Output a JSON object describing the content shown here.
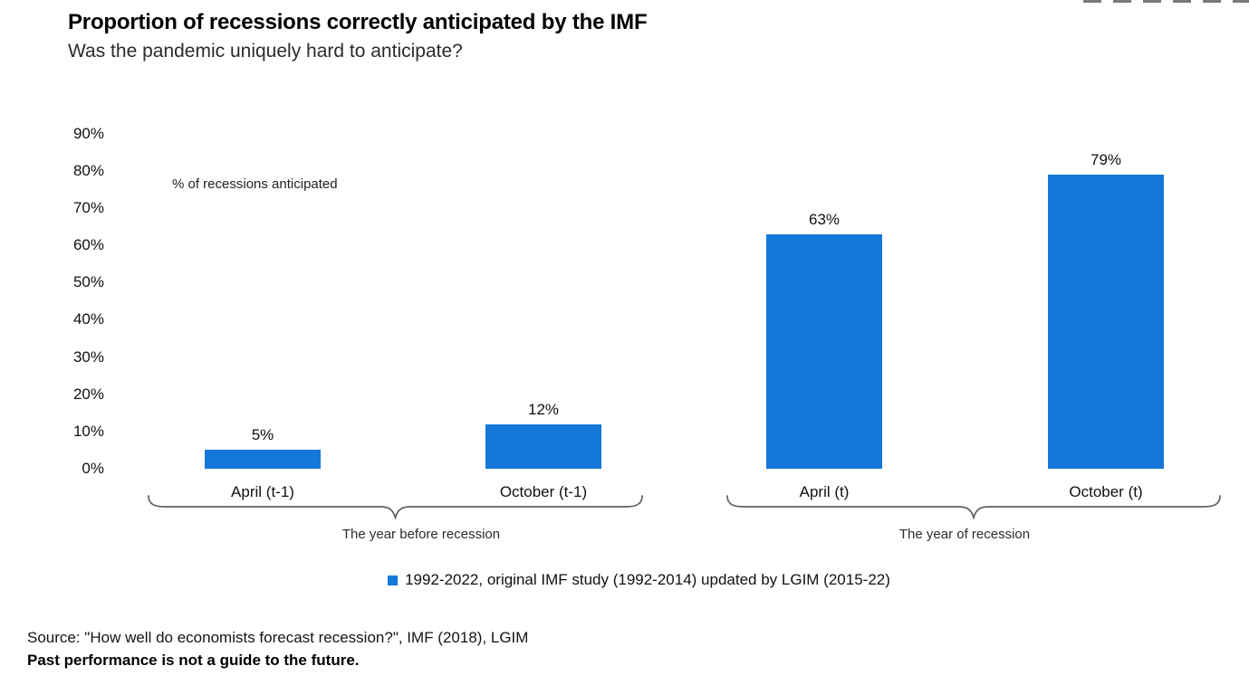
{
  "header": {
    "title": "Proportion of recessions correctly anticipated by the IMF",
    "subtitle": "Was the pandemic uniquely hard to anticipate?"
  },
  "chart_data": {
    "type": "bar",
    "title": "Proportion of recessions correctly anticipated by the IMF",
    "subtitle": "Was the pandemic uniquely hard to anticipate?",
    "annotation": "% of recessions anticipated",
    "categories": [
      "April (t-1)",
      "October (t-1)",
      "April (t)",
      "October (t)"
    ],
    "values": [
      5,
      12,
      63,
      79
    ],
    "value_labels": [
      "5%",
      "12%",
      "63%",
      "79%"
    ],
    "ylabel": "",
    "xlabel": "",
    "ylim": [
      0,
      90
    ],
    "ytick_step": 10,
    "yticks": [
      "90%",
      "80%",
      "70%",
      "60%",
      "50%",
      "40%",
      "30%",
      "20%",
      "10%",
      "0%"
    ],
    "grid": false,
    "bar_color": "#1577d8",
    "groups": [
      {
        "label": "The year before recession",
        "categories": [
          "April (t-1)",
          "October (t-1)"
        ]
      },
      {
        "label": "The year of recession",
        "categories": [
          "April (t)",
          "October (t)"
        ]
      }
    ],
    "legend": [
      {
        "label": "1992-2022, original IMF study (1992-2014) updated by LGIM (2015-22)",
        "color": "#1577d8"
      }
    ],
    "legend_position": "bottom"
  },
  "footer": {
    "source": "Source: \"How well do economists forecast recession?\", IMF (2018), LGIM",
    "disclaimer": "Past performance is not a guide to the future."
  }
}
